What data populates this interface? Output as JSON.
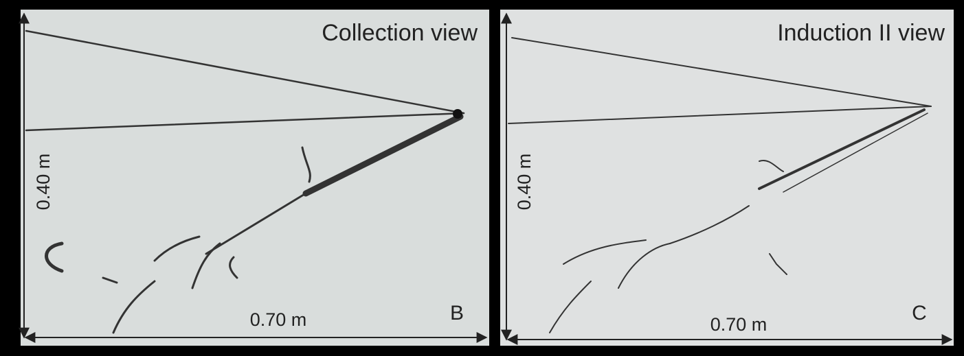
{
  "panels": [
    {
      "title": "Collection view",
      "label": "B",
      "width": "0.70 m",
      "height": "0.40 m"
    },
    {
      "title": "Induction II view",
      "label": "C",
      "width": "0.70 m",
      "height": "0.40 m"
    }
  ]
}
